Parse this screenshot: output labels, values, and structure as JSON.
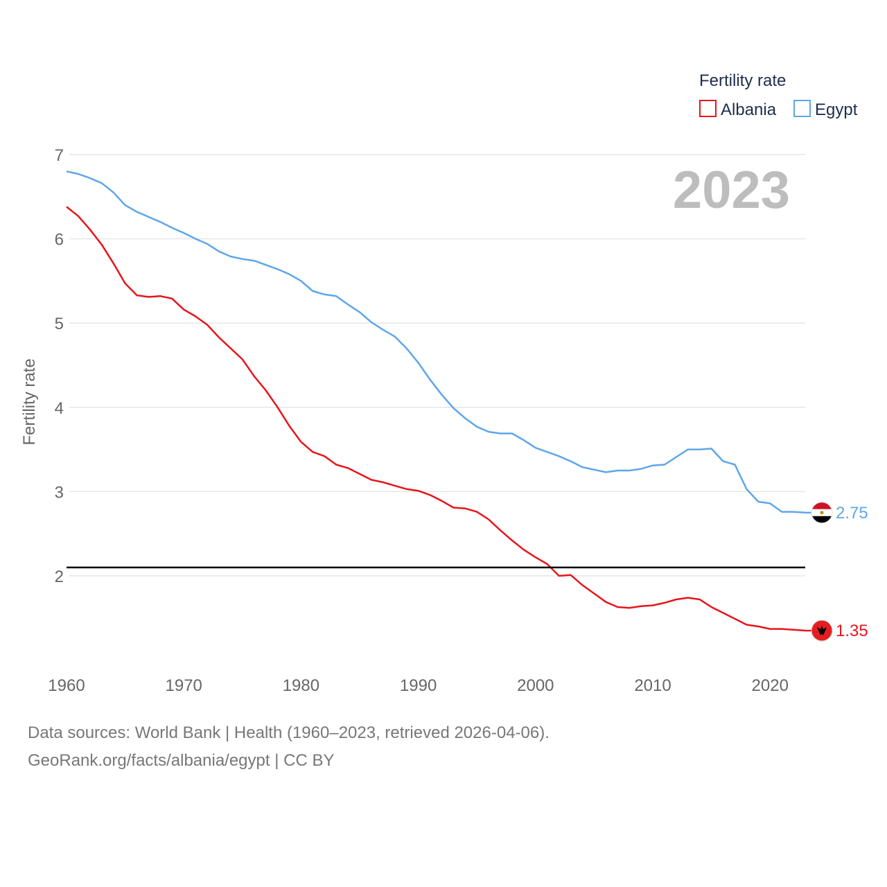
{
  "chart_data": {
    "type": "line",
    "ylabel": "Fertility rate",
    "ylim": [
      1.0,
      7.0
    ],
    "xlim": [
      1960,
      2023
    ],
    "y_ticks": [
      2,
      3,
      4,
      5,
      6,
      7
    ],
    "x_ticks": [
      1960,
      1970,
      1980,
      1990,
      2000,
      2010,
      2020
    ],
    "grid": true,
    "legend": {
      "title": "Fertility rate",
      "position": "top-right"
    },
    "current_year": "2023",
    "reference_line": 2.1,
    "x": [
      1960,
      1961,
      1962,
      1963,
      1964,
      1965,
      1966,
      1967,
      1968,
      1969,
      1970,
      1971,
      1972,
      1973,
      1974,
      1975,
      1976,
      1977,
      1978,
      1979,
      1980,
      1981,
      1982,
      1983,
      1984,
      1985,
      1986,
      1987,
      1988,
      1989,
      1990,
      1991,
      1992,
      1993,
      1994,
      1995,
      1996,
      1997,
      1998,
      1999,
      2000,
      2001,
      2002,
      2003,
      2004,
      2005,
      2006,
      2007,
      2008,
      2009,
      2010,
      2011,
      2012,
      2013,
      2014,
      2015,
      2016,
      2017,
      2018,
      2019,
      2020,
      2021,
      2022,
      2023
    ],
    "series": [
      {
        "name": "Albania",
        "color": "#e8141b",
        "end_label": "1.35",
        "values": [
          6.38,
          6.27,
          6.11,
          5.93,
          5.71,
          5.47,
          5.33,
          5.31,
          5.32,
          5.29,
          5.16,
          5.08,
          4.98,
          4.83,
          4.7,
          4.57,
          4.37,
          4.2,
          4.0,
          3.78,
          3.59,
          3.47,
          3.42,
          3.32,
          3.28,
          3.21,
          3.14,
          3.11,
          3.07,
          3.03,
          3.01,
          2.96,
          2.89,
          2.81,
          2.8,
          2.76,
          2.67,
          2.54,
          2.42,
          2.31,
          2.22,
          2.14,
          2.0,
          2.01,
          1.89,
          1.79,
          1.69,
          1.63,
          1.62,
          1.64,
          1.65,
          1.68,
          1.72,
          1.74,
          1.72,
          1.63,
          1.56,
          1.49,
          1.42,
          1.4,
          1.37,
          1.37,
          1.36,
          1.35
        ]
      },
      {
        "name": "Egypt",
        "color": "#5ea6e8",
        "end_label": "2.75",
        "values": [
          6.8,
          6.77,
          6.72,
          6.66,
          6.55,
          6.4,
          6.32,
          6.26,
          6.2,
          6.13,
          6.07,
          6.0,
          5.94,
          5.85,
          5.79,
          5.76,
          5.74,
          5.69,
          5.64,
          5.58,
          5.5,
          5.38,
          5.34,
          5.32,
          5.22,
          5.13,
          5.01,
          4.92,
          4.84,
          4.7,
          4.53,
          4.33,
          4.15,
          3.99,
          3.87,
          3.77,
          3.71,
          3.69,
          3.69,
          3.61,
          3.52,
          3.47,
          3.42,
          3.36,
          3.29,
          3.26,
          3.23,
          3.25,
          3.25,
          3.27,
          3.31,
          3.32,
          3.41,
          3.5,
          3.5,
          3.51,
          3.36,
          3.32,
          3.03,
          2.88,
          2.86,
          2.76,
          2.76,
          2.75
        ]
      }
    ]
  },
  "footer": {
    "line1": "Data sources: World Bank | Health (1960–2023, retrieved 2026-04-06).",
    "line2": "GeoRank.org/facts/albania/egypt | CC BY"
  }
}
